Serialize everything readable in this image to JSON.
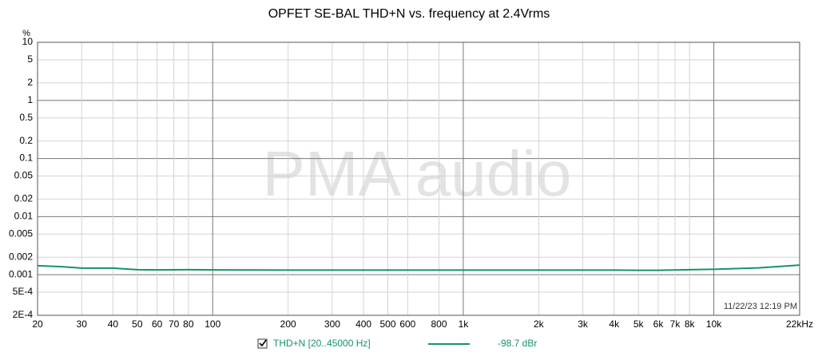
{
  "chart_data": {
    "type": "line",
    "title": "OPFET SE-BAL THD+N vs. frequency at 2.4Vrms",
    "y_unit": "%",
    "watermark": "PMA audio",
    "timestamp": "11/22/23 12:19 PM",
    "x": [
      20,
      25,
      30,
      40,
      50,
      60,
      80,
      100,
      200,
      400,
      1000,
      2000,
      4000,
      5000,
      6000,
      8000,
      10000,
      15000,
      18000,
      22000
    ],
    "series": [
      {
        "name": "THD+N [20..45000 Hz]",
        "color": "#13936b",
        "legend_value": "-98.7 dBr",
        "values": [
          0.00143,
          0.00137,
          0.0013,
          0.0013,
          0.00122,
          0.00121,
          0.00122,
          0.00121,
          0.0012,
          0.0012,
          0.0012,
          0.0012,
          0.0012,
          0.00119,
          0.00119,
          0.00122,
          0.00124,
          0.00131,
          0.00138,
          0.00146
        ]
      }
    ],
    "x_log": true,
    "y_log": true,
    "xlim": [
      20,
      22000
    ],
    "ylim": [
      0.0002,
      10
    ],
    "xticks": [
      20,
      30,
      40,
      50,
      60,
      70,
      80,
      100,
      200,
      300,
      400,
      500,
      600,
      800,
      {
        "value": 1000,
        "label": "1k"
      },
      {
        "value": 2000,
        "label": "2k"
      },
      {
        "value": 3000,
        "label": "3k"
      },
      {
        "value": 4000,
        "label": "4k"
      },
      {
        "value": 5000,
        "label": "5k"
      },
      {
        "value": 6000,
        "label": "6k"
      },
      {
        "value": 7000,
        "label": "7k"
      },
      {
        "value": 8000,
        "label": "8k"
      },
      {
        "value": 10000,
        "label": "10k"
      },
      {
        "value": 22000,
        "label": "22kHz"
      }
    ],
    "yticks": [
      10,
      5,
      2,
      1,
      0.5,
      0.2,
      0.1,
      0.05,
      0.02,
      0.01,
      0.005,
      0.002,
      0.001,
      {
        "value": 0.0005,
        "label": "5E-4"
      },
      {
        "value": 0.0002,
        "label": "2E-4"
      }
    ],
    "grid": true
  }
}
